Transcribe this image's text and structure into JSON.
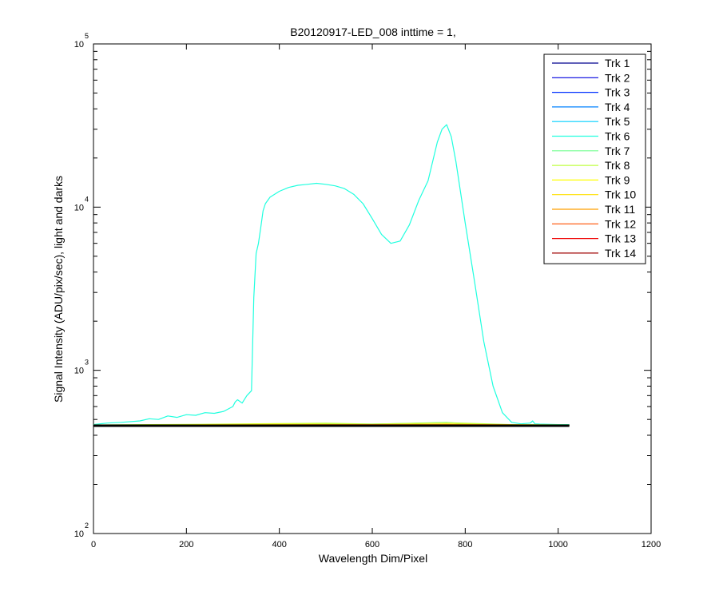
{
  "chart_data": {
    "type": "line",
    "title": "B20120917-LED_008 inttime = 1,",
    "xlabel": "Wavelength Dim/Pixel",
    "ylabel": "Signal Intensity (ADU/pix/sec), light and darks",
    "xlim": [
      0,
      1200
    ],
    "ylim": [
      100,
      100000
    ],
    "yscale": "log",
    "x_ticks": [
      "0",
      "200",
      "400",
      "600",
      "800",
      "1000",
      "1200"
    ],
    "y_ticks": [
      {
        "base": "10",
        "exp": "2"
      },
      {
        "base": "10",
        "exp": "3"
      },
      {
        "base": "10",
        "exp": "4"
      },
      {
        "base": "10",
        "exp": "5"
      }
    ],
    "grid": false,
    "legend_position": "top-right",
    "series": [
      {
        "name": "Trk 1",
        "color": "#00008f",
        "x": [
          0,
          1024
        ],
        "y": [
          460,
          460
        ]
      },
      {
        "name": "Trk 2",
        "color": "#0000df",
        "x": [
          0,
          1024
        ],
        "y": [
          461,
          461
        ]
      },
      {
        "name": "Trk 3",
        "color": "#0030ff",
        "x": [
          0,
          1024
        ],
        "y": [
          461,
          461
        ]
      },
      {
        "name": "Trk 4",
        "color": "#0080ff",
        "x": [
          0,
          1024
        ],
        "y": [
          462,
          462
        ]
      },
      {
        "name": "Trk 5",
        "color": "#00cfff",
        "x": [
          0,
          1024
        ],
        "y": [
          462,
          462
        ]
      },
      {
        "name": "Trk 6",
        "color": "#20ffdf",
        "x": [
          0,
          30,
          60,
          100,
          120,
          140,
          160,
          180,
          200,
          220,
          240,
          260,
          280,
          300,
          305,
          310,
          320,
          330,
          340,
          345,
          350,
          355,
          360,
          365,
          370,
          380,
          400,
          420,
          440,
          460,
          480,
          500,
          520,
          540,
          560,
          580,
          600,
          620,
          640,
          660,
          680,
          700,
          720,
          740,
          750,
          760,
          770,
          780,
          800,
          820,
          840,
          860,
          880,
          900,
          920,
          940,
          945,
          950,
          960,
          1000,
          1024
        ],
        "y": [
          465,
          475,
          480,
          490,
          505,
          500,
          525,
          515,
          535,
          530,
          550,
          545,
          560,
          600,
          640,
          660,
          630,
          700,
          750,
          2800,
          5200,
          6000,
          7500,
          9500,
          10500,
          11500,
          12500,
          13200,
          13600,
          13800,
          14000,
          13800,
          13500,
          13000,
          12000,
          10500,
          8500,
          6800,
          6000,
          6200,
          7800,
          11000,
          14500,
          25000,
          30000,
          32000,
          27000,
          19000,
          8000,
          3500,
          1500,
          800,
          550,
          480,
          470,
          475,
          490,
          470,
          468,
          465,
          465
        ]
      },
      {
        "name": "Trk 7",
        "color": "#70ff8f",
        "x": [
          0,
          200,
          400,
          600,
          700,
          760,
          800,
          900,
          1024
        ],
        "y": [
          462,
          464,
          470,
          468,
          475,
          480,
          470,
          464,
          462
        ]
      },
      {
        "name": "Trk 8",
        "color": "#bfff40",
        "x": [
          0,
          200,
          400,
          500,
          600,
          760,
          900,
          1024
        ],
        "y": [
          463,
          466,
          472,
          474,
          468,
          478,
          465,
          463
        ]
      },
      {
        "name": "Trk 9",
        "color": "#ffff00",
        "x": [
          0,
          200,
          400,
          600,
          760,
          900,
          1024
        ],
        "y": [
          462,
          464,
          468,
          465,
          470,
          463,
          462
        ]
      },
      {
        "name": "Trk 10",
        "color": "#ffdf00",
        "x": [
          0,
          1024
        ],
        "y": [
          461,
          461
        ]
      },
      {
        "name": "Trk 11",
        "color": "#ff9f00",
        "x": [
          0,
          400,
          760,
          1024
        ],
        "y": [
          461,
          464,
          466,
          461
        ]
      },
      {
        "name": "Trk 12",
        "color": "#ff5000",
        "x": [
          0,
          1024
        ],
        "y": [
          460,
          460
        ]
      },
      {
        "name": "Trk 13",
        "color": "#ef0000",
        "x": [
          0,
          1024
        ],
        "y": [
          460,
          460
        ]
      },
      {
        "name": "Trk 14",
        "color": "#9f0000",
        "x": [
          0,
          1024
        ],
        "y": [
          459,
          459
        ]
      },
      {
        "name": "",
        "color": "#000000",
        "x": [
          0,
          1024
        ],
        "y": [
          458,
          458
        ]
      }
    ]
  }
}
